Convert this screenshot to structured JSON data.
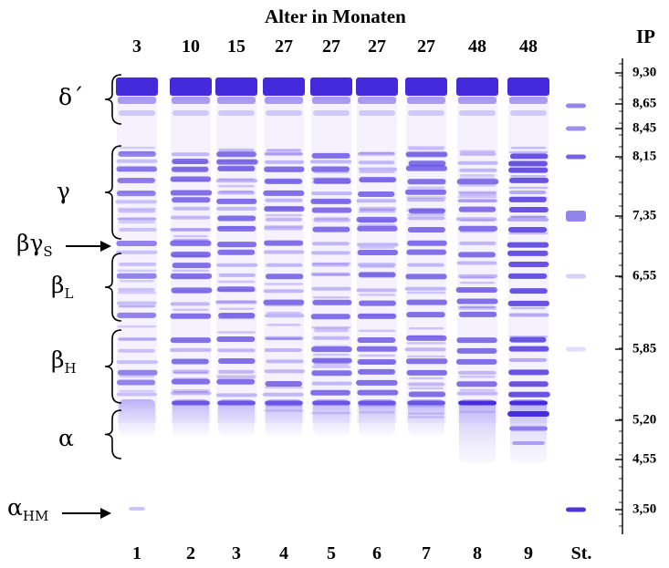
{
  "title": "Alter in Monaten",
  "ip_axis_label": "IP",
  "ages": [
    "3",
    "10",
    "15",
    "27",
    "27",
    "27",
    "27",
    "48",
    "48"
  ],
  "lane_labels": [
    "1",
    "2",
    "3",
    "4",
    "5",
    "6",
    "7",
    "8",
    "9",
    "St."
  ],
  "ip_values": [
    "9,30",
    "8,65",
    "8,45",
    "8,15",
    "7,35",
    "6,55",
    "5,85",
    "5,20",
    "4,55",
    "3,50"
  ],
  "fractions": {
    "delta": {
      "base": "δ´",
      "sub": ""
    },
    "gamma": {
      "base": "γ",
      "sub": ""
    },
    "beta_gamma_s": {
      "base": "βγ",
      "sub": "S"
    },
    "beta_l": {
      "base": "β",
      "sub": "L"
    },
    "beta_h": {
      "base": "β",
      "sub": "H"
    },
    "alpha": {
      "base": "α",
      "sub": ""
    },
    "alpha_hm": {
      "base": "α",
      "sub": "HM"
    }
  },
  "colors": {
    "band_strong": "#3a1fd8",
    "band_medium": "#6a52ea",
    "band_light": "#b7acf4",
    "text": "#000000"
  }
}
